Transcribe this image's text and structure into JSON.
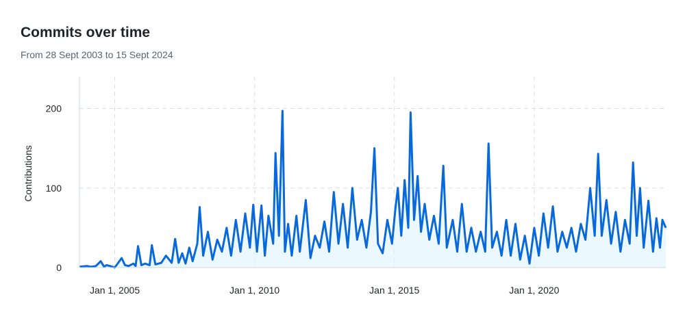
{
  "header": {
    "title": "Commits over time",
    "subtitle": "From 28 Sept 2003 to 15 Sept 2024"
  },
  "colors": {
    "line": "#0969da",
    "area": "#ddf4ff",
    "grid": "#d8dee4",
    "axis": "#d0d7de"
  },
  "chart_data": {
    "type": "area",
    "title": "Commits over time",
    "subtitle": "From 28 Sept 2003 to 15 Sept 2024",
    "xlabel": "",
    "ylabel": "Contributions",
    "x_range": [
      "2003-09-28",
      "2024-09-15"
    ],
    "ylim": [
      0,
      240
    ],
    "y_ticks": [
      0,
      100,
      200
    ],
    "x_ticks": [
      {
        "date": "2005-01-01",
        "label": "Jan 1, 2005"
      },
      {
        "date": "2010-01-01",
        "label": "Jan 1, 2010"
      },
      {
        "date": "2015-01-01",
        "label": "Jan 1, 2015"
      },
      {
        "date": "2020-01-01",
        "label": "Jan 1, 2020"
      }
    ],
    "grid": true,
    "series": [
      {
        "granularity": "weekly (approximate envelope)",
        "points": [
          [
            "2003-09-28",
            1
          ],
          [
            "2004-01-01",
            2
          ],
          [
            "2004-03-01",
            1
          ],
          [
            "2004-05-01",
            2
          ],
          [
            "2004-07-01",
            8
          ],
          [
            "2004-08-15",
            1
          ],
          [
            "2004-09-15",
            3
          ],
          [
            "2004-11-01",
            2
          ],
          [
            "2005-01-01",
            0
          ],
          [
            "2005-02-15",
            6
          ],
          [
            "2005-04-01",
            12
          ],
          [
            "2005-05-15",
            3
          ],
          [
            "2005-07-01",
            2
          ],
          [
            "2005-09-01",
            5
          ],
          [
            "2005-10-01",
            2
          ],
          [
            "2005-11-01",
            27
          ],
          [
            "2005-12-15",
            3
          ],
          [
            "2006-02-01",
            5
          ],
          [
            "2006-04-01",
            3
          ],
          [
            "2006-05-01",
            28
          ],
          [
            "2006-06-15",
            4
          ],
          [
            "2006-09-01",
            6
          ],
          [
            "2006-11-01",
            15
          ],
          [
            "2007-01-15",
            6
          ],
          [
            "2007-03-01",
            36
          ],
          [
            "2007-04-15",
            6
          ],
          [
            "2007-06-01",
            18
          ],
          [
            "2007-07-15",
            5
          ],
          [
            "2007-09-01",
            25
          ],
          [
            "2007-10-15",
            8
          ],
          [
            "2007-12-15",
            30
          ],
          [
            "2008-01-15",
            76
          ],
          [
            "2008-03-01",
            15
          ],
          [
            "2008-05-01",
            45
          ],
          [
            "2008-07-01",
            10
          ],
          [
            "2008-09-01",
            35
          ],
          [
            "2008-11-01",
            20
          ],
          [
            "2009-01-01",
            50
          ],
          [
            "2009-03-01",
            15
          ],
          [
            "2009-05-01",
            60
          ],
          [
            "2009-07-01",
            20
          ],
          [
            "2009-09-01",
            68
          ],
          [
            "2009-11-01",
            25
          ],
          [
            "2009-12-15",
            79
          ],
          [
            "2010-02-01",
            20
          ],
          [
            "2010-04-01",
            78
          ],
          [
            "2010-05-15",
            15
          ],
          [
            "2010-07-01",
            65
          ],
          [
            "2010-09-01",
            30
          ],
          [
            "2010-10-01",
            144
          ],
          [
            "2010-11-15",
            40
          ],
          [
            "2011-01-01",
            197
          ],
          [
            "2011-02-01",
            20
          ],
          [
            "2011-03-15",
            55
          ],
          [
            "2011-05-01",
            15
          ],
          [
            "2011-07-01",
            65
          ],
          [
            "2011-08-15",
            20
          ],
          [
            "2011-11-01",
            85
          ],
          [
            "2012-01-01",
            12
          ],
          [
            "2012-03-01",
            40
          ],
          [
            "2012-05-01",
            25
          ],
          [
            "2012-07-01",
            58
          ],
          [
            "2012-09-01",
            20
          ],
          [
            "2012-11-01",
            95
          ],
          [
            "2013-01-01",
            30
          ],
          [
            "2013-03-01",
            80
          ],
          [
            "2013-05-01",
            25
          ],
          [
            "2013-07-01",
            100
          ],
          [
            "2013-09-01",
            35
          ],
          [
            "2013-11-01",
            60
          ],
          [
            "2014-01-01",
            25
          ],
          [
            "2014-03-01",
            70
          ],
          [
            "2014-04-15",
            150
          ],
          [
            "2014-06-01",
            30
          ],
          [
            "2014-08-01",
            18
          ],
          [
            "2014-10-01",
            60
          ],
          [
            "2014-12-01",
            30
          ],
          [
            "2015-01-15",
            75
          ],
          [
            "2015-02-15",
            100
          ],
          [
            "2015-04-01",
            40
          ],
          [
            "2015-05-15",
            110
          ],
          [
            "2015-07-01",
            50
          ],
          [
            "2015-08-01",
            195
          ],
          [
            "2015-09-15",
            60
          ],
          [
            "2015-11-01",
            115
          ],
          [
            "2015-12-15",
            45
          ],
          [
            "2016-02-01",
            80
          ],
          [
            "2016-04-01",
            35
          ],
          [
            "2016-06-01",
            65
          ],
          [
            "2016-08-01",
            30
          ],
          [
            "2016-10-01",
            128
          ],
          [
            "2016-11-15",
            25
          ],
          [
            "2017-02-01",
            60
          ],
          [
            "2017-04-01",
            20
          ],
          [
            "2017-06-01",
            80
          ],
          [
            "2017-08-01",
            20
          ],
          [
            "2017-10-01",
            50
          ],
          [
            "2017-12-01",
            20
          ],
          [
            "2018-02-01",
            45
          ],
          [
            "2018-04-01",
            20
          ],
          [
            "2018-05-15",
            156
          ],
          [
            "2018-07-01",
            25
          ],
          [
            "2018-09-01",
            45
          ],
          [
            "2018-11-01",
            15
          ],
          [
            "2019-01-01",
            60
          ],
          [
            "2019-03-01",
            15
          ],
          [
            "2019-05-01",
            55
          ],
          [
            "2019-07-01",
            10
          ],
          [
            "2019-09-01",
            40
          ],
          [
            "2019-11-01",
            5
          ],
          [
            "2020-01-01",
            50
          ],
          [
            "2020-03-01",
            15
          ],
          [
            "2020-05-01",
            68
          ],
          [
            "2020-07-01",
            25
          ],
          [
            "2020-09-01",
            77
          ],
          [
            "2020-11-01",
            20
          ],
          [
            "2021-01-01",
            45
          ],
          [
            "2021-03-01",
            25
          ],
          [
            "2021-05-01",
            50
          ],
          [
            "2021-07-01",
            20
          ],
          [
            "2021-09-01",
            55
          ],
          [
            "2021-11-01",
            35
          ],
          [
            "2022-01-01",
            100
          ],
          [
            "2022-03-01",
            40
          ],
          [
            "2022-04-15",
            143
          ],
          [
            "2022-06-01",
            40
          ],
          [
            "2022-08-01",
            85
          ],
          [
            "2022-10-01",
            30
          ],
          [
            "2022-12-01",
            70
          ],
          [
            "2023-02-01",
            20
          ],
          [
            "2023-04-01",
            60
          ],
          [
            "2023-06-01",
            30
          ],
          [
            "2023-07-15",
            132
          ],
          [
            "2023-09-01",
            40
          ],
          [
            "2023-10-15",
            100
          ],
          [
            "2023-12-01",
            25
          ],
          [
            "2024-02-01",
            84
          ],
          [
            "2024-04-01",
            20
          ],
          [
            "2024-05-15",
            62
          ],
          [
            "2024-07-01",
            25
          ],
          [
            "2024-08-01",
            60
          ],
          [
            "2024-09-15",
            50
          ]
        ]
      }
    ]
  }
}
